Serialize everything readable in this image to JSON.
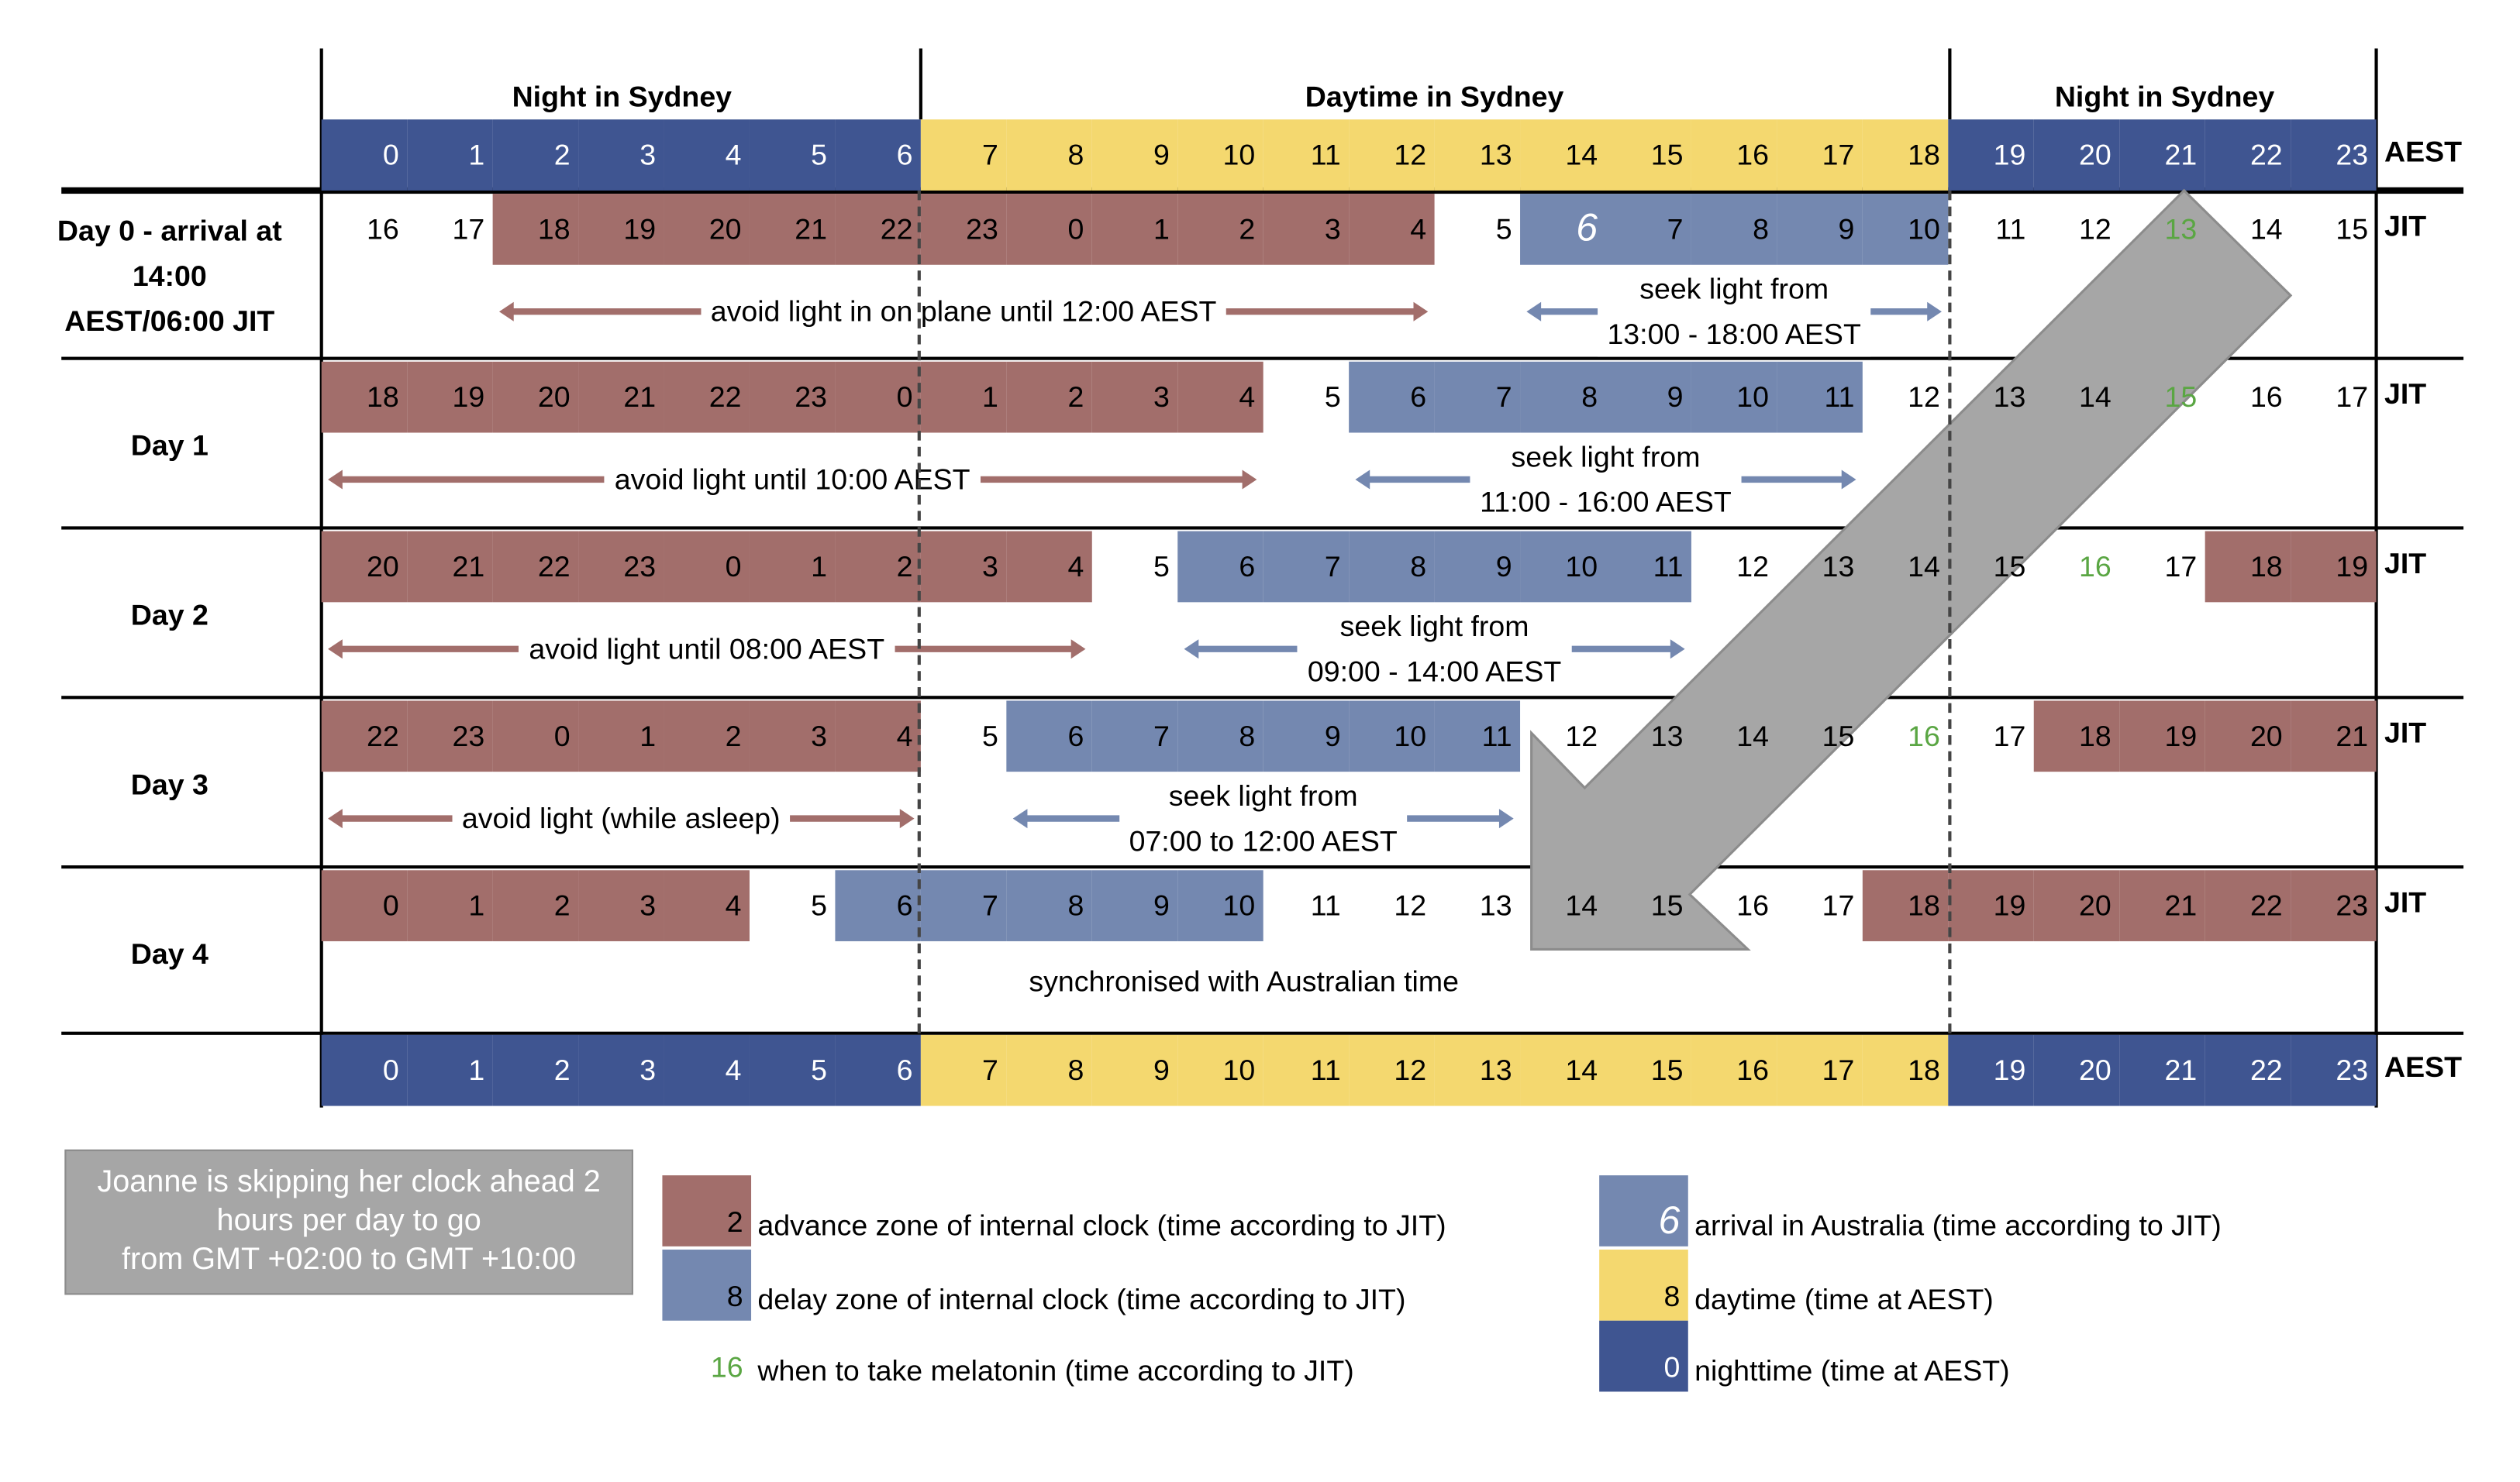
{
  "header": {
    "sections": [
      "Night in Sydney",
      "Daytime in Sydney",
      "Night in Sydney"
    ],
    "hours": [
      0,
      1,
      2,
      3,
      4,
      5,
      6,
      7,
      8,
      9,
      10,
      11,
      12,
      13,
      14,
      15,
      16,
      17,
      18,
      19,
      20,
      21,
      22,
      23
    ],
    "daytime_hours": [
      7,
      18
    ],
    "unit_label": "AEST",
    "row_unit_label": "JIT"
  },
  "rows": [
    {
      "label_lines": [
        "Day 0 - arrival at",
        "14:00",
        "AEST/06:00 JIT"
      ],
      "values": [
        16,
        17,
        18,
        19,
        20,
        21,
        22,
        23,
        0,
        1,
        2,
        3,
        4,
        5,
        6,
        7,
        8,
        9,
        10,
        11,
        12,
        13,
        14,
        15
      ],
      "advance_zones": [
        [
          2,
          12
        ]
      ],
      "delay_zones": [
        [
          14,
          18
        ]
      ],
      "melatonin_hour": 21,
      "arrival_hour": 14,
      "avoid": {
        "text": "avoid light in on plane until 12:00 AEST",
        "from": 2,
        "to": 12
      },
      "seek": {
        "lines": [
          "seek light from",
          "13:00 - 18:00 AEST"
        ],
        "from": 14,
        "to": 18
      }
    },
    {
      "label_lines": [
        "Day 1"
      ],
      "values": [
        18,
        19,
        20,
        21,
        22,
        23,
        0,
        1,
        2,
        3,
        4,
        5,
        6,
        7,
        8,
        9,
        10,
        11,
        12,
        13,
        14,
        15,
        16,
        17
      ],
      "advance_zones": [
        [
          0,
          10
        ]
      ],
      "delay_zones": [
        [
          12,
          17
        ]
      ],
      "melatonin_hour": 21,
      "avoid": {
        "text": "avoid light until 10:00 AEST",
        "from": 0,
        "to": 10
      },
      "seek": {
        "lines": [
          "seek light from",
          "11:00 - 16:00 AEST"
        ],
        "from": 12,
        "to": 17
      }
    },
    {
      "label_lines": [
        "Day 2"
      ],
      "values": [
        20,
        21,
        22,
        23,
        0,
        1,
        2,
        3,
        4,
        5,
        6,
        7,
        8,
        9,
        10,
        11,
        12,
        13,
        14,
        15,
        16,
        17,
        18,
        19
      ],
      "advance_zones": [
        [
          0,
          8
        ],
        [
          22,
          23
        ]
      ],
      "delay_zones": [
        [
          10,
          15
        ]
      ],
      "melatonin_hour": 20,
      "avoid": {
        "text": "avoid light until 08:00 AEST",
        "from": 0,
        "to": 8
      },
      "seek": {
        "lines": [
          "seek light from",
          "09:00 - 14:00 AEST"
        ],
        "from": 10,
        "to": 15
      }
    },
    {
      "label_lines": [
        "Day 3"
      ],
      "values": [
        22,
        23,
        0,
        1,
        2,
        3,
        4,
        5,
        6,
        7,
        8,
        9,
        10,
        11,
        12,
        13,
        14,
        15,
        16,
        17,
        18,
        19,
        20,
        21
      ],
      "advance_zones": [
        [
          0,
          6
        ],
        [
          20,
          23
        ]
      ],
      "delay_zones": [
        [
          8,
          13
        ]
      ],
      "melatonin_hour": 18,
      "avoid": {
        "text": "avoid light (while asleep)",
        "from": 0,
        "to": 6
      },
      "seek": {
        "lines": [
          "seek light from",
          "07:00 to 12:00 AEST"
        ],
        "from": 8,
        "to": 13
      }
    },
    {
      "label_lines": [
        "Day 4"
      ],
      "values": [
        0,
        1,
        2,
        3,
        4,
        5,
        6,
        7,
        8,
        9,
        10,
        11,
        12,
        13,
        14,
        15,
        16,
        17,
        18,
        19,
        20,
        21,
        22,
        23
      ],
      "advance_zones": [
        [
          0,
          4
        ],
        [
          18,
          23
        ]
      ],
      "delay_zones": [
        [
          6,
          10
        ]
      ],
      "note": "synchronised with Australian time"
    }
  ],
  "big_arrow": {
    "lines": [
      "Joanne is skipping her clock ahead 2 hours per day to go",
      "from GMT +02:00 to GMT +10:00"
    ]
  },
  "legend": [
    {
      "swatch": "2",
      "text": "advance zone of internal clock (time according to JIT)",
      "kind": "advance"
    },
    {
      "swatch": "8",
      "text": "delay zone of internal clock (time according to JIT)",
      "kind": "delay"
    },
    {
      "swatch": "16",
      "text": "when to take melatonin (time according to JIT)",
      "kind": "melatonin"
    },
    {
      "swatch": "6",
      "text": "arrival in Australia (time according to JIT)",
      "kind": "arrival"
    },
    {
      "swatch": "8",
      "text": "daytime (time at AEST)",
      "kind": "daytime"
    },
    {
      "swatch": "0",
      "text": "nighttime (time at AEST)",
      "kind": "nighttime"
    }
  ],
  "colors": {
    "advance": "#a26e6b",
    "delay": "#7488b0",
    "night": "#3f5591",
    "day": "#f4d86f",
    "melatonin": "#5aa643",
    "arrow": "#a6a6a6"
  }
}
